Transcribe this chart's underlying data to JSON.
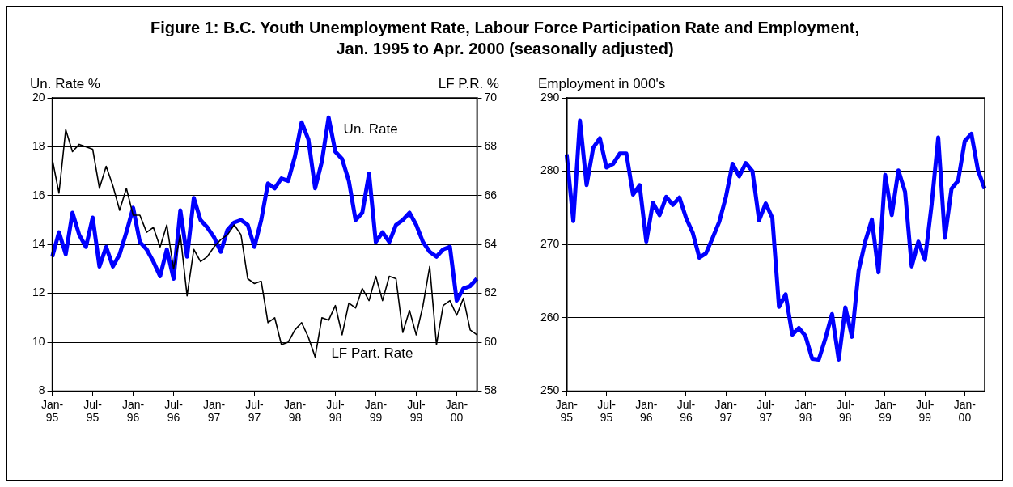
{
  "chart_data": [
    {
      "type": "line",
      "title": "Figure 1: B.C. Youth Unemployment Rate, Labour Force Participation Rate and Employment,\nJan. 1995 to Apr. 2000 (seasonally adjusted)",
      "categories": [
        "Jan-\n95",
        null,
        null,
        null,
        null,
        null,
        "Jul-\n95",
        null,
        null,
        null,
        null,
        null,
        "Jan-\n96",
        null,
        null,
        null,
        null,
        null,
        "Jul-\n96",
        null,
        null,
        null,
        null,
        null,
        "Jan-\n97",
        null,
        null,
        null,
        null,
        null,
        "Jul-\n97",
        null,
        null,
        null,
        null,
        null,
        "Jan-\n98",
        null,
        null,
        null,
        null,
        null,
        "Jul-\n98",
        null,
        null,
        null,
        null,
        null,
        "Jan-\n99",
        null,
        null,
        null,
        null,
        null,
        "Jul-\n99",
        null,
        null,
        null,
        null,
        null,
        "Jan-\n00",
        null,
        null,
        null
      ],
      "series": [
        {
          "name": "Un. Rate",
          "color": "#0000ff",
          "axis": "y",
          "values": [
            13.5,
            14.5,
            13.6,
            15.3,
            14.4,
            13.9,
            15.1,
            13.1,
            13.9,
            13.1,
            13.6,
            14.5,
            15.5,
            14.1,
            13.8,
            13.3,
            12.7,
            13.8,
            12.6,
            15.4,
            13.5,
            15.9,
            15.0,
            14.7,
            14.3,
            13.7,
            14.6,
            14.9,
            15.0,
            14.8,
            13.9,
            15.0,
            16.5,
            16.3,
            16.7,
            16.6,
            17.6,
            19.0,
            18.3,
            16.3,
            17.4,
            19.2,
            17.8,
            17.5,
            16.6,
            15.0,
            15.3,
            16.9,
            14.1,
            14.5,
            14.1,
            14.8,
            15.0,
            15.3,
            14.8,
            14.1,
            13.7,
            13.5,
            13.8,
            13.9,
            11.7,
            12.2,
            12.3,
            12.6
          ]
        },
        {
          "name": "LF Part. Rate",
          "color": "#000000",
          "axis": "y2",
          "values": [
            67.5,
            66.1,
            68.7,
            67.8,
            68.1,
            68.0,
            67.9,
            66.3,
            67.2,
            66.4,
            65.4,
            66.3,
            65.2,
            65.2,
            64.5,
            64.7,
            63.9,
            64.8,
            63.0,
            64.4,
            61.9,
            63.8,
            63.3,
            63.5,
            63.9,
            64.2,
            64.4,
            64.8,
            64.4,
            62.6,
            62.4,
            62.5,
            60.8,
            61.0,
            59.9,
            60.0,
            60.5,
            60.8,
            60.2,
            59.4,
            61.0,
            60.9,
            61.5,
            60.3,
            61.6,
            61.4,
            62.2,
            61.7,
            62.7,
            61.7,
            62.7,
            62.6,
            60.4,
            61.3,
            60.3,
            61.5,
            63.1,
            59.9,
            61.5,
            61.7,
            61.1,
            61.8,
            60.5,
            60.3
          ]
        }
      ],
      "ylabel": "Un. Rate %",
      "y2label": "LF P.R. %",
      "ylim": [
        8,
        20
      ],
      "yticks": [
        8,
        10,
        12,
        14,
        16,
        18,
        20
      ],
      "y2lim": [
        58,
        70
      ],
      "y2ticks": [
        58,
        60,
        62,
        64,
        66,
        68,
        70
      ],
      "grid": "y",
      "line_style": "solid",
      "marker": "none"
    },
    {
      "type": "line",
      "categories": [
        "Jan-\n95",
        null,
        null,
        null,
        null,
        null,
        "Jul-\n95",
        null,
        null,
        null,
        null,
        null,
        "Jan-\n96",
        null,
        null,
        null,
        null,
        null,
        "Jul-\n96",
        null,
        null,
        null,
        null,
        null,
        "Jan-\n97",
        null,
        null,
        null,
        null,
        null,
        "Jul-\n97",
        null,
        null,
        null,
        null,
        null,
        "Jan-\n98",
        null,
        null,
        null,
        null,
        null,
        "Jul-\n98",
        null,
        null,
        null,
        null,
        null,
        "Jan-\n99",
        null,
        null,
        null,
        null,
        null,
        "Jul-\n99",
        null,
        null,
        null,
        null,
        null,
        "Jan-\n00",
        null,
        null,
        null
      ],
      "series": [
        {
          "color": "#0000ff",
          "values": [
            282.3,
            273.2,
            286.9,
            278.1,
            283.2,
            284.5,
            280.5,
            281.0,
            282.4,
            282.4,
            276.8,
            278.1,
            270.4,
            275.7,
            274.0,
            276.5,
            275.4,
            276.4,
            273.6,
            271.6,
            268.2,
            268.8,
            270.9,
            273.1,
            276.5,
            281.0,
            279.3,
            281.1,
            280.0,
            273.3,
            275.6,
            273.6,
            261.5,
            263.2,
            257.7,
            258.6,
            257.5,
            254.4,
            254.3,
            257.2,
            260.5,
            254.3,
            261.4,
            257.4,
            266.4,
            270.4,
            273.4,
            266.2,
            279.5,
            274.0,
            280.1,
            277.2,
            267.0,
            270.4,
            267.9,
            275.4,
            284.6,
            270.9,
            277.6,
            278.7,
            284.1,
            285.1,
            280.1,
            277.6
          ]
        }
      ],
      "ylabel": "Employment in 000's",
      "ylim": [
        250,
        290
      ],
      "yticks": [
        250,
        260,
        270,
        280,
        290
      ],
      "grid": "y",
      "line_style": "solid",
      "marker": "none"
    }
  ]
}
